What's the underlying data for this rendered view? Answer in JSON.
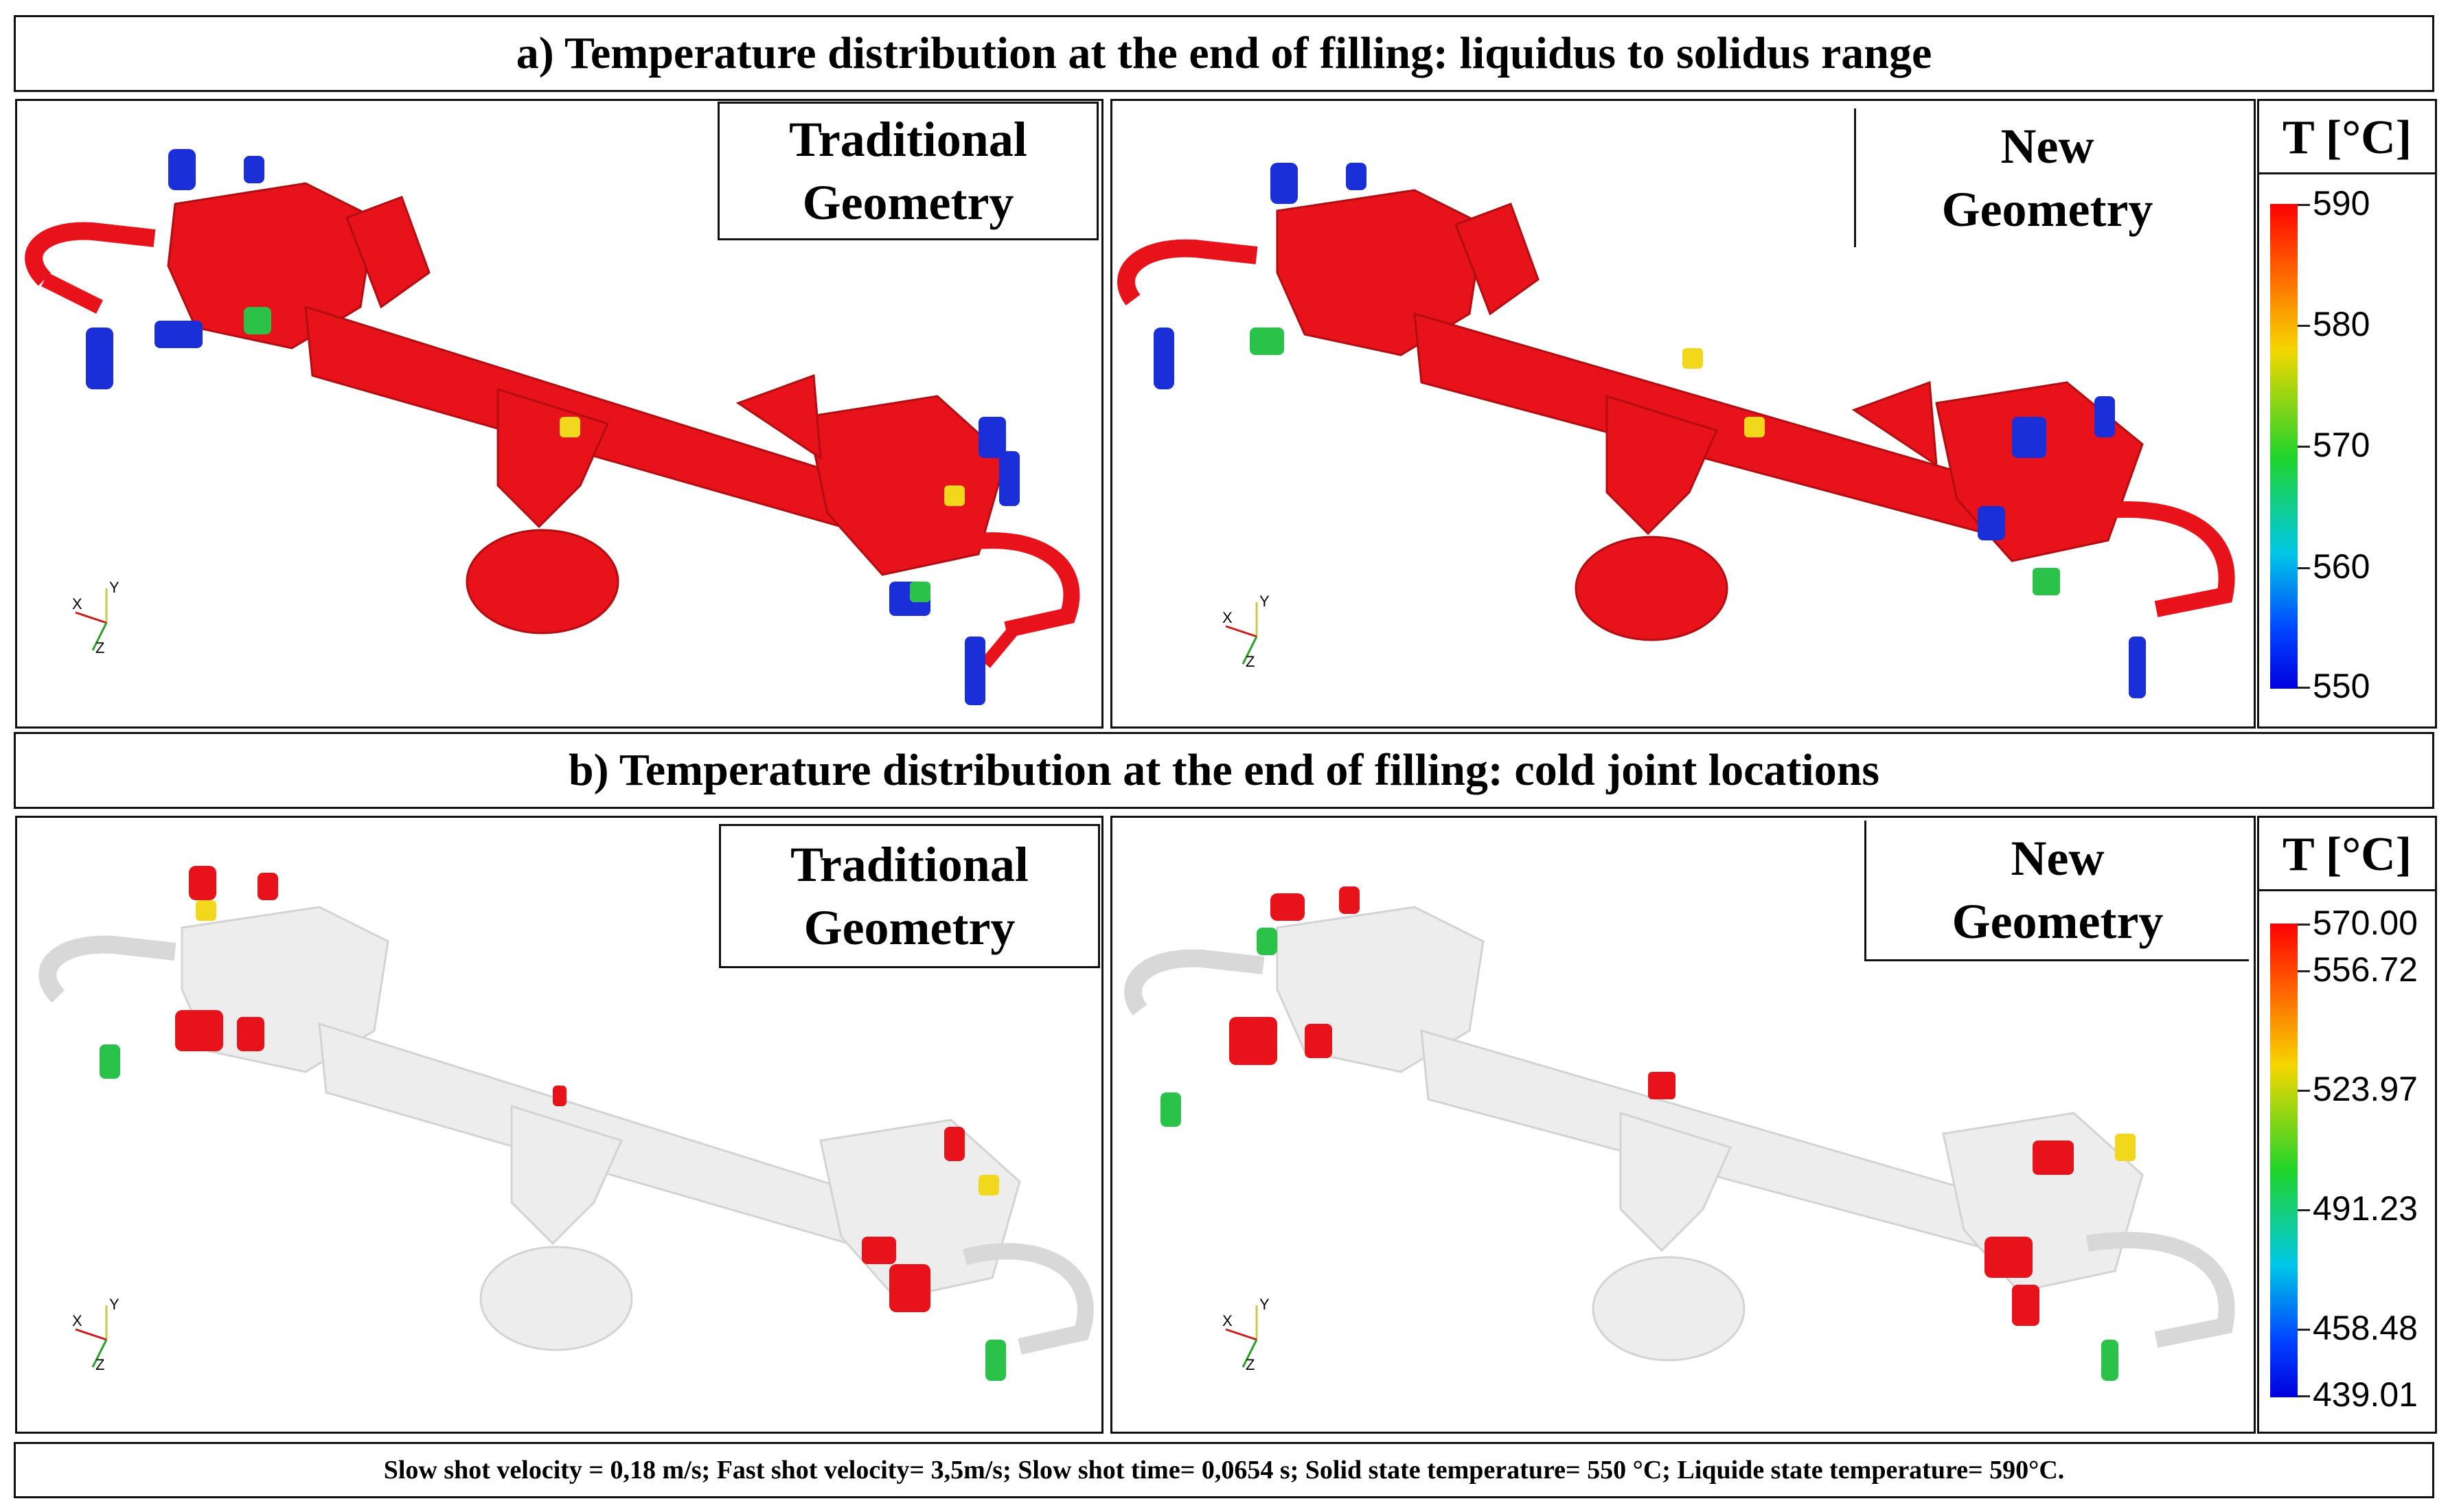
{
  "panel_a": {
    "title": "a) Temperature distribution at the end of filling: liquidus to solidus range",
    "left_label": [
      "Traditional",
      "Geometry"
    ],
    "right_label": [
      "New",
      "Geometry"
    ],
    "scale": {
      "title": "T [°C]",
      "ticks": [
        "590",
        "580",
        "570",
        "560",
        "550"
      ]
    }
  },
  "panel_b": {
    "title": "b) Temperature distribution at the end of filling: cold joint locations",
    "left_label": [
      "Traditional",
      "Geometry"
    ],
    "right_label": [
      "New",
      "Geometry"
    ],
    "scale": {
      "title": "T [°C]",
      "ticks": [
        "570.00",
        "556.72",
        "523.97",
        "491.23",
        "458.48",
        "439.01"
      ]
    }
  },
  "axes": {
    "x": "X",
    "y": "Y",
    "z": "Z"
  },
  "footer": "Slow shot velocity = 0,18 m/s; Fast shot velocity= 3,5m/s; Slow shot time= 0,0654 s; Solid state temperature= 550 °C; Liquide state temperature= 590°C.",
  "colors": {
    "hot": "#e8121a",
    "cold": "#1a2fd8",
    "ghost": "#d9d9d9"
  }
}
